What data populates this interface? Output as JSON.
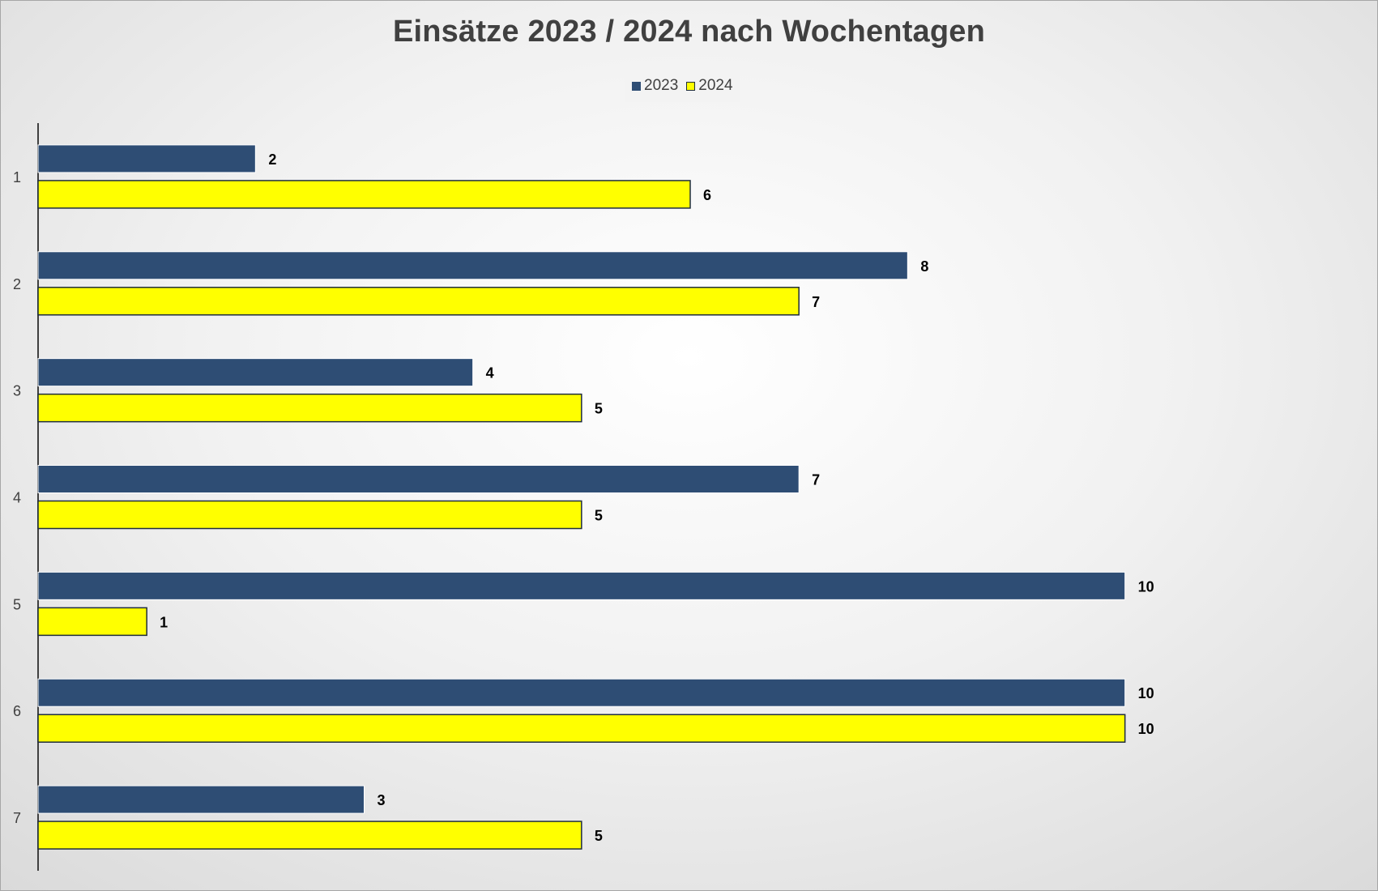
{
  "chart_data": {
    "type": "bar",
    "orientation": "horizontal",
    "title": "Einsätze 2023 / 2024 nach Wochentagen",
    "categories": [
      "1",
      "2",
      "3",
      "4",
      "5",
      "6",
      "7"
    ],
    "series": [
      {
        "name": "2023",
        "values": [
          2,
          8,
          4,
          7,
          10,
          10,
          3
        ],
        "color": "#2e4d74"
      },
      {
        "name": "2024",
        "values": [
          6,
          7,
          5,
          5,
          1,
          10,
          5
        ],
        "color": "#ffff00"
      }
    ],
    "xlim": [
      0,
      12
    ],
    "data_labels": true,
    "grid": false,
    "legend_position": "top"
  }
}
